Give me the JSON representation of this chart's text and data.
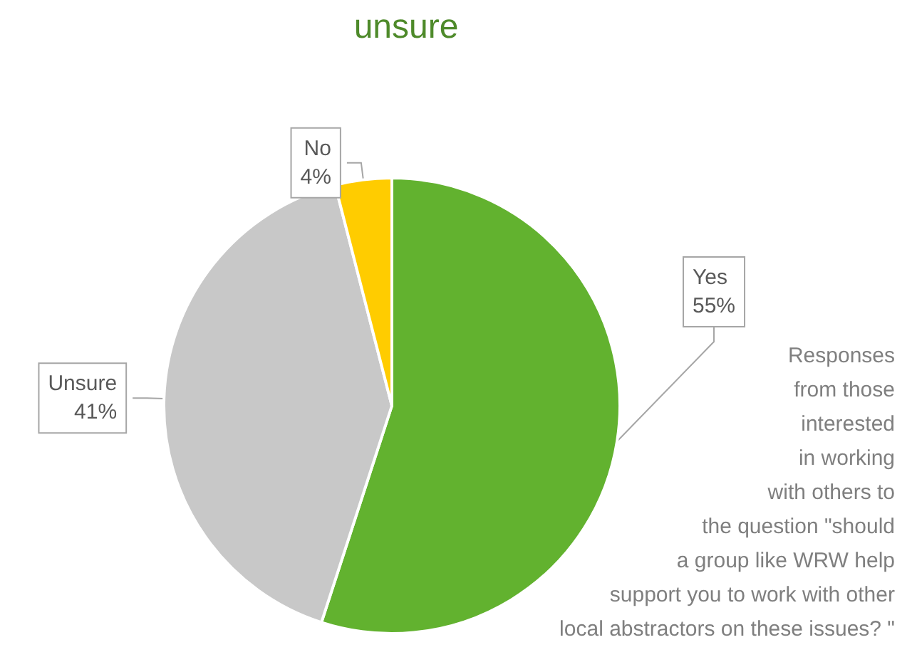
{
  "chart_data": {
    "type": "pie",
    "title": "unsure",
    "categories": [
      "Yes",
      "Unsure",
      "No"
    ],
    "values": [
      55,
      41,
      4
    ],
    "colors": [
      "#62b22f",
      "#c8c8c8",
      "#ffcc00"
    ],
    "value_labels": [
      "55%",
      "41%",
      "4%"
    ],
    "annotations": [
      "Responses\nfrom those\ninterested\nin working\nwith others to\nthe question \"should\na group like WRW help\nsupport you to work with other\nlocal abstractors on these issues? \""
    ],
    "legend": false
  }
}
